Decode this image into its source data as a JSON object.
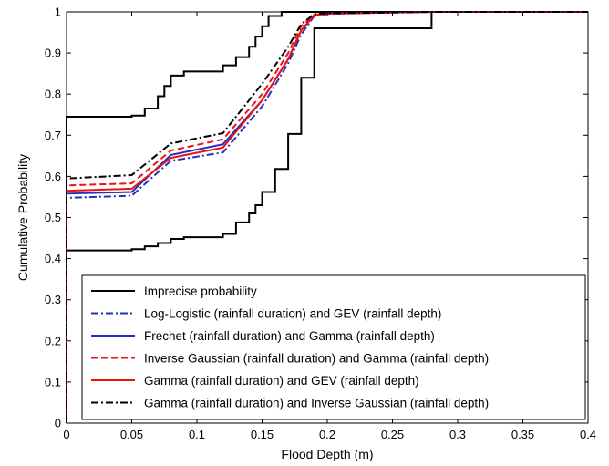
{
  "chart_data": {
    "type": "line",
    "xlabel": "Flood Depth (m)",
    "ylabel": "Cumulative Probability",
    "xlim": [
      0,
      0.4
    ],
    "ylim": [
      0,
      1
    ],
    "xticks": [
      0,
      0.05,
      0.1,
      0.15,
      0.2,
      0.25,
      0.3,
      0.35,
      0.4
    ],
    "xtick_labels": [
      "0",
      "0.05",
      "0.1",
      "0.15",
      "0.2",
      "0.25",
      "0.3",
      "0.35",
      "0.4"
    ],
    "yticks": [
      0,
      0.1,
      0.2,
      0.3,
      0.4,
      0.5,
      0.6,
      0.7,
      0.8,
      0.9,
      1
    ],
    "ytick_labels": [
      "0",
      "0.1",
      "0.2",
      "0.3",
      "0.4",
      "0.5",
      "0.6",
      "0.7",
      "0.8",
      "0.9",
      "1"
    ],
    "grid": false,
    "legend_position": "bottom-right",
    "series": [
      {
        "name": "Imprecise probability",
        "color": "#000000",
        "dash": "solid",
        "x": [
          0,
          0,
          0.05,
          0.05,
          0.06,
          0.06,
          0.07,
          0.07,
          0.075,
          0.075,
          0.08,
          0.08,
          0.09,
          0.09,
          0.12,
          0.12,
          0.13,
          0.13,
          0.14,
          0.14,
          0.145,
          0.145,
          0.15,
          0.15,
          0.155,
          0.155,
          0.165,
          0.165,
          0.19,
          0.19,
          0.2,
          0.2,
          0.4
        ],
        "y": [
          0,
          0.745,
          0.745,
          0.748,
          0.748,
          0.765,
          0.765,
          0.795,
          0.795,
          0.82,
          0.82,
          0.845,
          0.845,
          0.855,
          0.855,
          0.87,
          0.87,
          0.89,
          0.89,
          0.915,
          0.915,
          0.94,
          0.94,
          0.965,
          0.965,
          0.99,
          0.99,
          1.0,
          1.0,
          1.0,
          1.0,
          1.0,
          1.0
        ]
      },
      {
        "name": "",
        "color": "#000000",
        "dash": "solid",
        "x": [
          0,
          0,
          0.05,
          0.05,
          0.06,
          0.06,
          0.07,
          0.07,
          0.08,
          0.08,
          0.09,
          0.09,
          0.12,
          0.12,
          0.13,
          0.13,
          0.14,
          0.14,
          0.145,
          0.145,
          0.15,
          0.15,
          0.16,
          0.16,
          0.17,
          0.17,
          0.18,
          0.18,
          0.19,
          0.19,
          0.28,
          0.28,
          0.4
        ],
        "y": [
          0,
          0.42,
          0.42,
          0.423,
          0.423,
          0.43,
          0.43,
          0.438,
          0.438,
          0.448,
          0.448,
          0.452,
          0.452,
          0.46,
          0.46,
          0.488,
          0.488,
          0.51,
          0.51,
          0.53,
          0.53,
          0.562,
          0.562,
          0.618,
          0.618,
          0.703,
          0.703,
          0.84,
          0.84,
          0.96,
          0.96,
          1.0,
          1.0
        ]
      },
      {
        "name": "Log-Logistic (rainfall duration) and GEV (rainfall depth)",
        "color": "#2233bb",
        "dash": "dashdot",
        "x": [
          0,
          0,
          0.05,
          0.08,
          0.12,
          0.15,
          0.17,
          0.18,
          0.19,
          0.2,
          0.24,
          0.28,
          0.4
        ],
        "y": [
          0,
          0.548,
          0.553,
          0.638,
          0.658,
          0.77,
          0.875,
          0.945,
          0.99,
          0.995,
          0.998,
          1.0,
          1.0
        ]
      },
      {
        "name": "Frechet (rainfall duration) and Gamma (rainfall depth)",
        "color": "#2233bb",
        "dash": "solid",
        "x": [
          0,
          0,
          0.05,
          0.08,
          0.12,
          0.15,
          0.17,
          0.18,
          0.19,
          0.2,
          0.24,
          0.28,
          0.4
        ],
        "y": [
          0,
          0.558,
          0.562,
          0.652,
          0.678,
          0.785,
          0.885,
          0.955,
          0.992,
          0.996,
          0.998,
          1.0,
          1.0
        ]
      },
      {
        "name": "Inverse Gaussian (rainfall duration) and Gamma (rainfall depth)",
        "color": "#ee1111",
        "dash": "dashed",
        "x": [
          0,
          0,
          0.05,
          0.08,
          0.12,
          0.15,
          0.17,
          0.18,
          0.19,
          0.2,
          0.24,
          0.28,
          0.4
        ],
        "y": [
          0,
          0.578,
          0.583,
          0.663,
          0.69,
          0.8,
          0.9,
          0.965,
          0.993,
          0.996,
          0.998,
          1.0,
          1.0
        ]
      },
      {
        "name": "Gamma (rainfall duration) and GEV (rainfall depth)",
        "color": "#ee1111",
        "dash": "solid",
        "x": [
          0,
          0,
          0.05,
          0.08,
          0.12,
          0.15,
          0.17,
          0.18,
          0.19,
          0.2,
          0.24,
          0.28,
          0.4
        ],
        "y": [
          0,
          0.565,
          0.57,
          0.645,
          0.67,
          0.785,
          0.885,
          0.955,
          0.992,
          0.996,
          0.998,
          1.0,
          1.0
        ]
      },
      {
        "name": "Gamma (rainfall duration) and Inverse Gaussian (rainfall depth)",
        "color": "#000000",
        "dash": "dashdot",
        "x": [
          0,
          0,
          0.05,
          0.08,
          0.12,
          0.15,
          0.17,
          0.18,
          0.19,
          0.2,
          0.24,
          0.28,
          0.4
        ],
        "y": [
          0,
          0.595,
          0.603,
          0.68,
          0.705,
          0.825,
          0.915,
          0.97,
          0.995,
          0.997,
          0.998,
          1.0,
          1.0
        ]
      }
    ]
  }
}
